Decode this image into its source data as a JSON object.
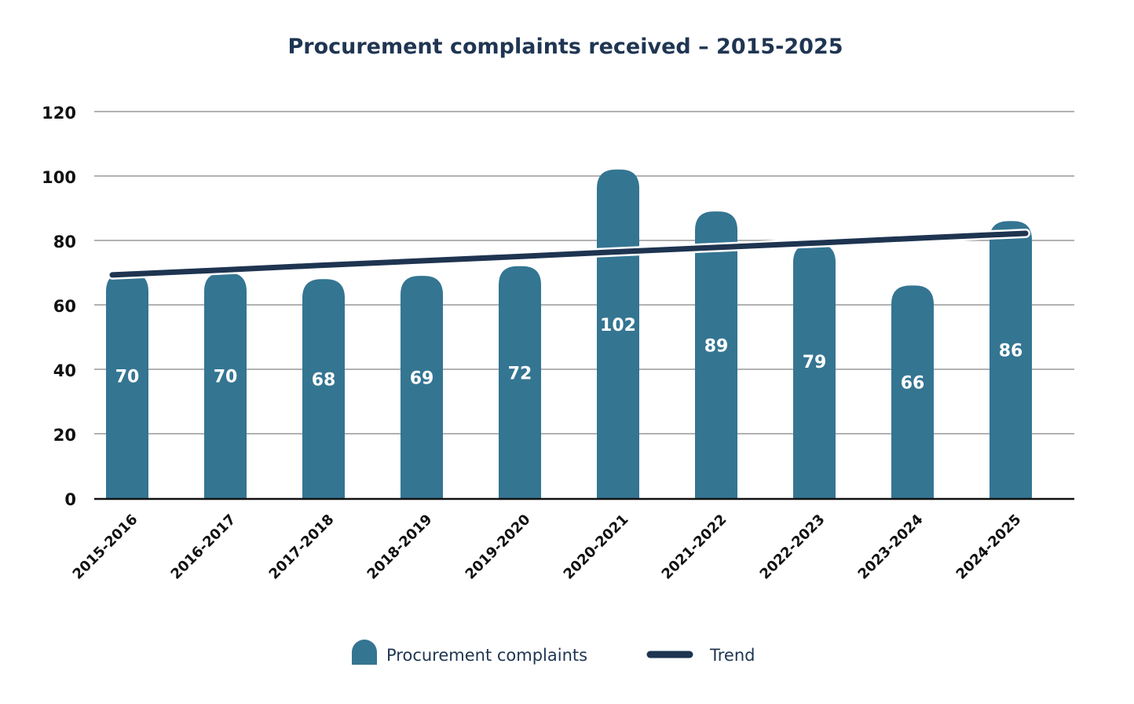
{
  "chart_data": {
    "type": "bar",
    "title": "Procurement complaints received – 2015-2025",
    "categories": [
      "2015-2016",
      "2016-2017",
      "2017-2018",
      "2018-2019",
      "2019-2020",
      "2020-2021",
      "2021-2022",
      "2022-2023",
      "2023-2024",
      "2024-2025"
    ],
    "series": [
      {
        "name": "Procurement complaints",
        "type": "bar",
        "color": "#347592",
        "values": [
          70,
          70,
          68,
          69,
          72,
          102,
          89,
          79,
          66,
          86
        ]
      },
      {
        "name": "Trend",
        "type": "line",
        "color": "#1e3450",
        "values": [
          69.3,
          70.7,
          72.2,
          73.6,
          75.0,
          76.5,
          77.9,
          79.3,
          80.8,
          82.2
        ]
      }
    ],
    "ylim": [
      0,
      120
    ],
    "yticks": [
      "0",
      "20",
      "40",
      "60",
      "80",
      "100",
      "120"
    ],
    "ytick_values": [
      0,
      20,
      40,
      60,
      80,
      100,
      120
    ],
    "grid": true,
    "legend_position": "bottom",
    "xlabel": "",
    "ylabel": ""
  }
}
